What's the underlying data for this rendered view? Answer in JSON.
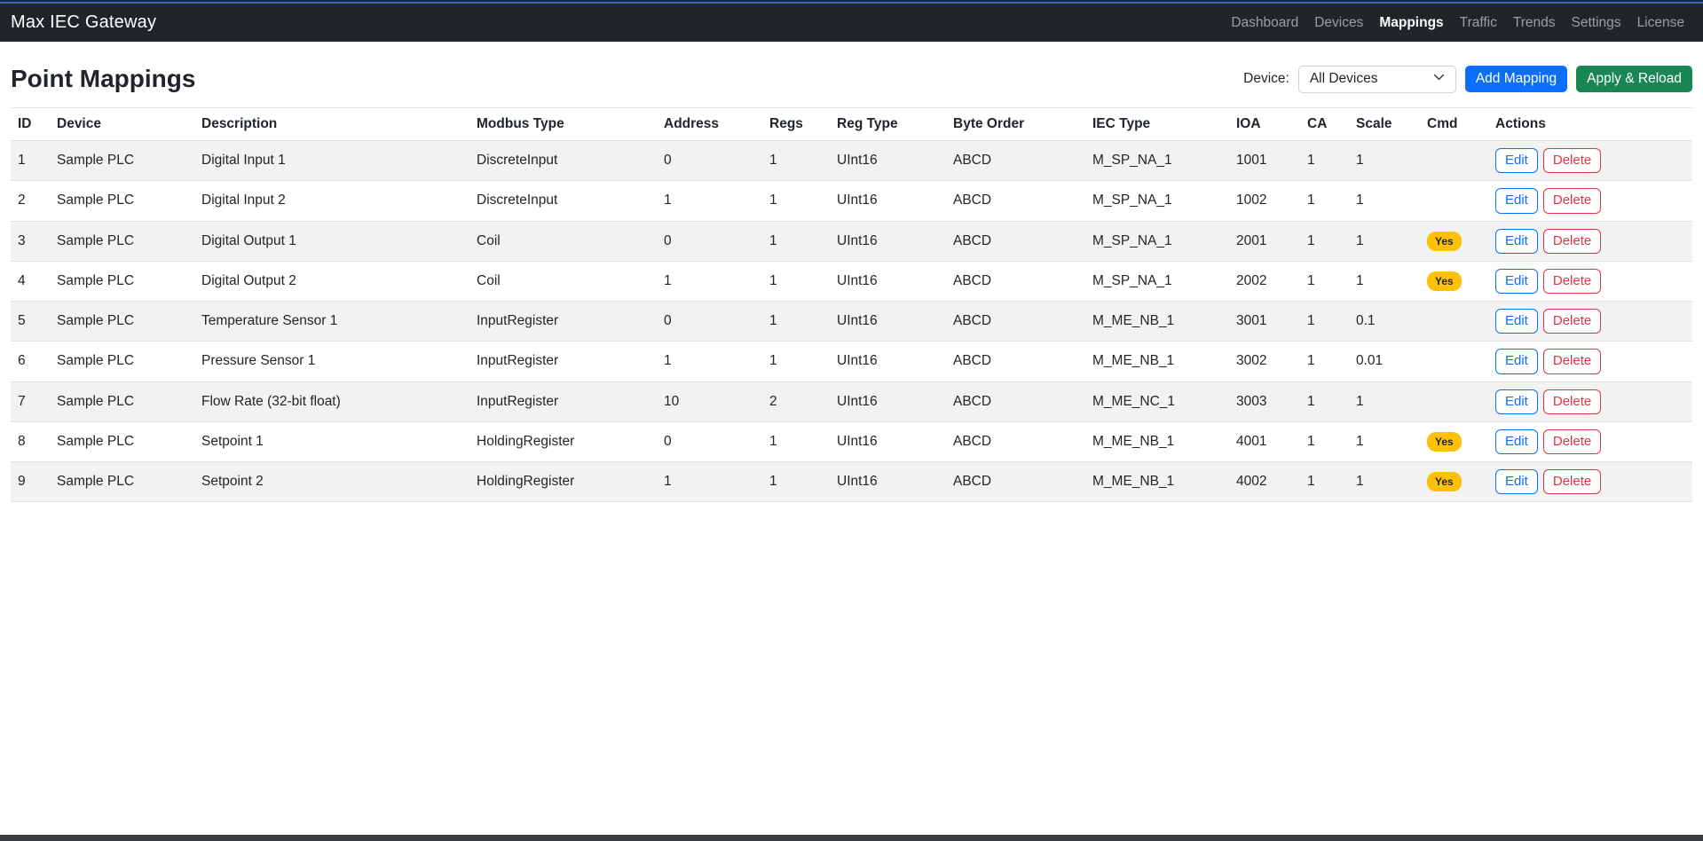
{
  "navbar": {
    "brand": "Max IEC Gateway",
    "items": [
      {
        "label": "Dashboard",
        "active": false
      },
      {
        "label": "Devices",
        "active": false
      },
      {
        "label": "Mappings",
        "active": true
      },
      {
        "label": "Traffic",
        "active": false
      },
      {
        "label": "Trends",
        "active": false
      },
      {
        "label": "Settings",
        "active": false
      },
      {
        "label": "License",
        "active": false
      }
    ]
  },
  "toolbar": {
    "title": "Point Mappings",
    "device_label": "Device:",
    "device_selected": "All Devices",
    "add_mapping_label": "Add Mapping",
    "apply_reload_label": "Apply & Reload"
  },
  "table": {
    "columns": [
      "ID",
      "Device",
      "Description",
      "Modbus Type",
      "Address",
      "Regs",
      "Reg Type",
      "Byte Order",
      "IEC Type",
      "IOA",
      "CA",
      "Scale",
      "Cmd",
      "Actions"
    ],
    "cmd_badge_label": "Yes",
    "edit_label": "Edit",
    "delete_label": "Delete",
    "rows": [
      {
        "id": "1",
        "device": "Sample PLC",
        "description": "Digital Input 1",
        "modbus_type": "DiscreteInput",
        "address": "0",
        "regs": "1",
        "reg_type": "UInt16",
        "byte_order": "ABCD",
        "iec_type": "M_SP_NA_1",
        "ioa": "1001",
        "ca": "1",
        "scale": "1",
        "cmd": false
      },
      {
        "id": "2",
        "device": "Sample PLC",
        "description": "Digital Input 2",
        "modbus_type": "DiscreteInput",
        "address": "1",
        "regs": "1",
        "reg_type": "UInt16",
        "byte_order": "ABCD",
        "iec_type": "M_SP_NA_1",
        "ioa": "1002",
        "ca": "1",
        "scale": "1",
        "cmd": false
      },
      {
        "id": "3",
        "device": "Sample PLC",
        "description": "Digital Output 1",
        "modbus_type": "Coil",
        "address": "0",
        "regs": "1",
        "reg_type": "UInt16",
        "byte_order": "ABCD",
        "iec_type": "M_SP_NA_1",
        "ioa": "2001",
        "ca": "1",
        "scale": "1",
        "cmd": true
      },
      {
        "id": "4",
        "device": "Sample PLC",
        "description": "Digital Output 2",
        "modbus_type": "Coil",
        "address": "1",
        "regs": "1",
        "reg_type": "UInt16",
        "byte_order": "ABCD",
        "iec_type": "M_SP_NA_1",
        "ioa": "2002",
        "ca": "1",
        "scale": "1",
        "cmd": true
      },
      {
        "id": "5",
        "device": "Sample PLC",
        "description": "Temperature Sensor 1",
        "modbus_type": "InputRegister",
        "address": "0",
        "regs": "1",
        "reg_type": "UInt16",
        "byte_order": "ABCD",
        "iec_type": "M_ME_NB_1",
        "ioa": "3001",
        "ca": "1",
        "scale": "0.1",
        "cmd": false
      },
      {
        "id": "6",
        "device": "Sample PLC",
        "description": "Pressure Sensor 1",
        "modbus_type": "InputRegister",
        "address": "1",
        "regs": "1",
        "reg_type": "UInt16",
        "byte_order": "ABCD",
        "iec_type": "M_ME_NB_1",
        "ioa": "3002",
        "ca": "1",
        "scale": "0.01",
        "cmd": false
      },
      {
        "id": "7",
        "device": "Sample PLC",
        "description": "Flow Rate (32-bit float)",
        "modbus_type": "InputRegister",
        "address": "10",
        "regs": "2",
        "reg_type": "UInt16",
        "byte_order": "ABCD",
        "iec_type": "M_ME_NC_1",
        "ioa": "3003",
        "ca": "1",
        "scale": "1",
        "cmd": false
      },
      {
        "id": "8",
        "device": "Sample PLC",
        "description": "Setpoint 1",
        "modbus_type": "HoldingRegister",
        "address": "0",
        "regs": "1",
        "reg_type": "UInt16",
        "byte_order": "ABCD",
        "iec_type": "M_ME_NB_1",
        "ioa": "4001",
        "ca": "1",
        "scale": "1",
        "cmd": true
      },
      {
        "id": "9",
        "device": "Sample PLC",
        "description": "Setpoint 2",
        "modbus_type": "HoldingRegister",
        "address": "1",
        "regs": "1",
        "reg_type": "UInt16",
        "byte_order": "ABCD",
        "iec_type": "M_ME_NB_1",
        "ioa": "4002",
        "ca": "1",
        "scale": "1",
        "cmd": true
      }
    ]
  },
  "colors": {
    "navbar_bg": "#212529",
    "primary": "#0d6efd",
    "success": "#198754",
    "warning_badge": "#ffc107",
    "danger": "#dc3545",
    "stripe": "#f2f2f2",
    "border": "#dee2e6",
    "top_accent": "#2e6ec0"
  }
}
